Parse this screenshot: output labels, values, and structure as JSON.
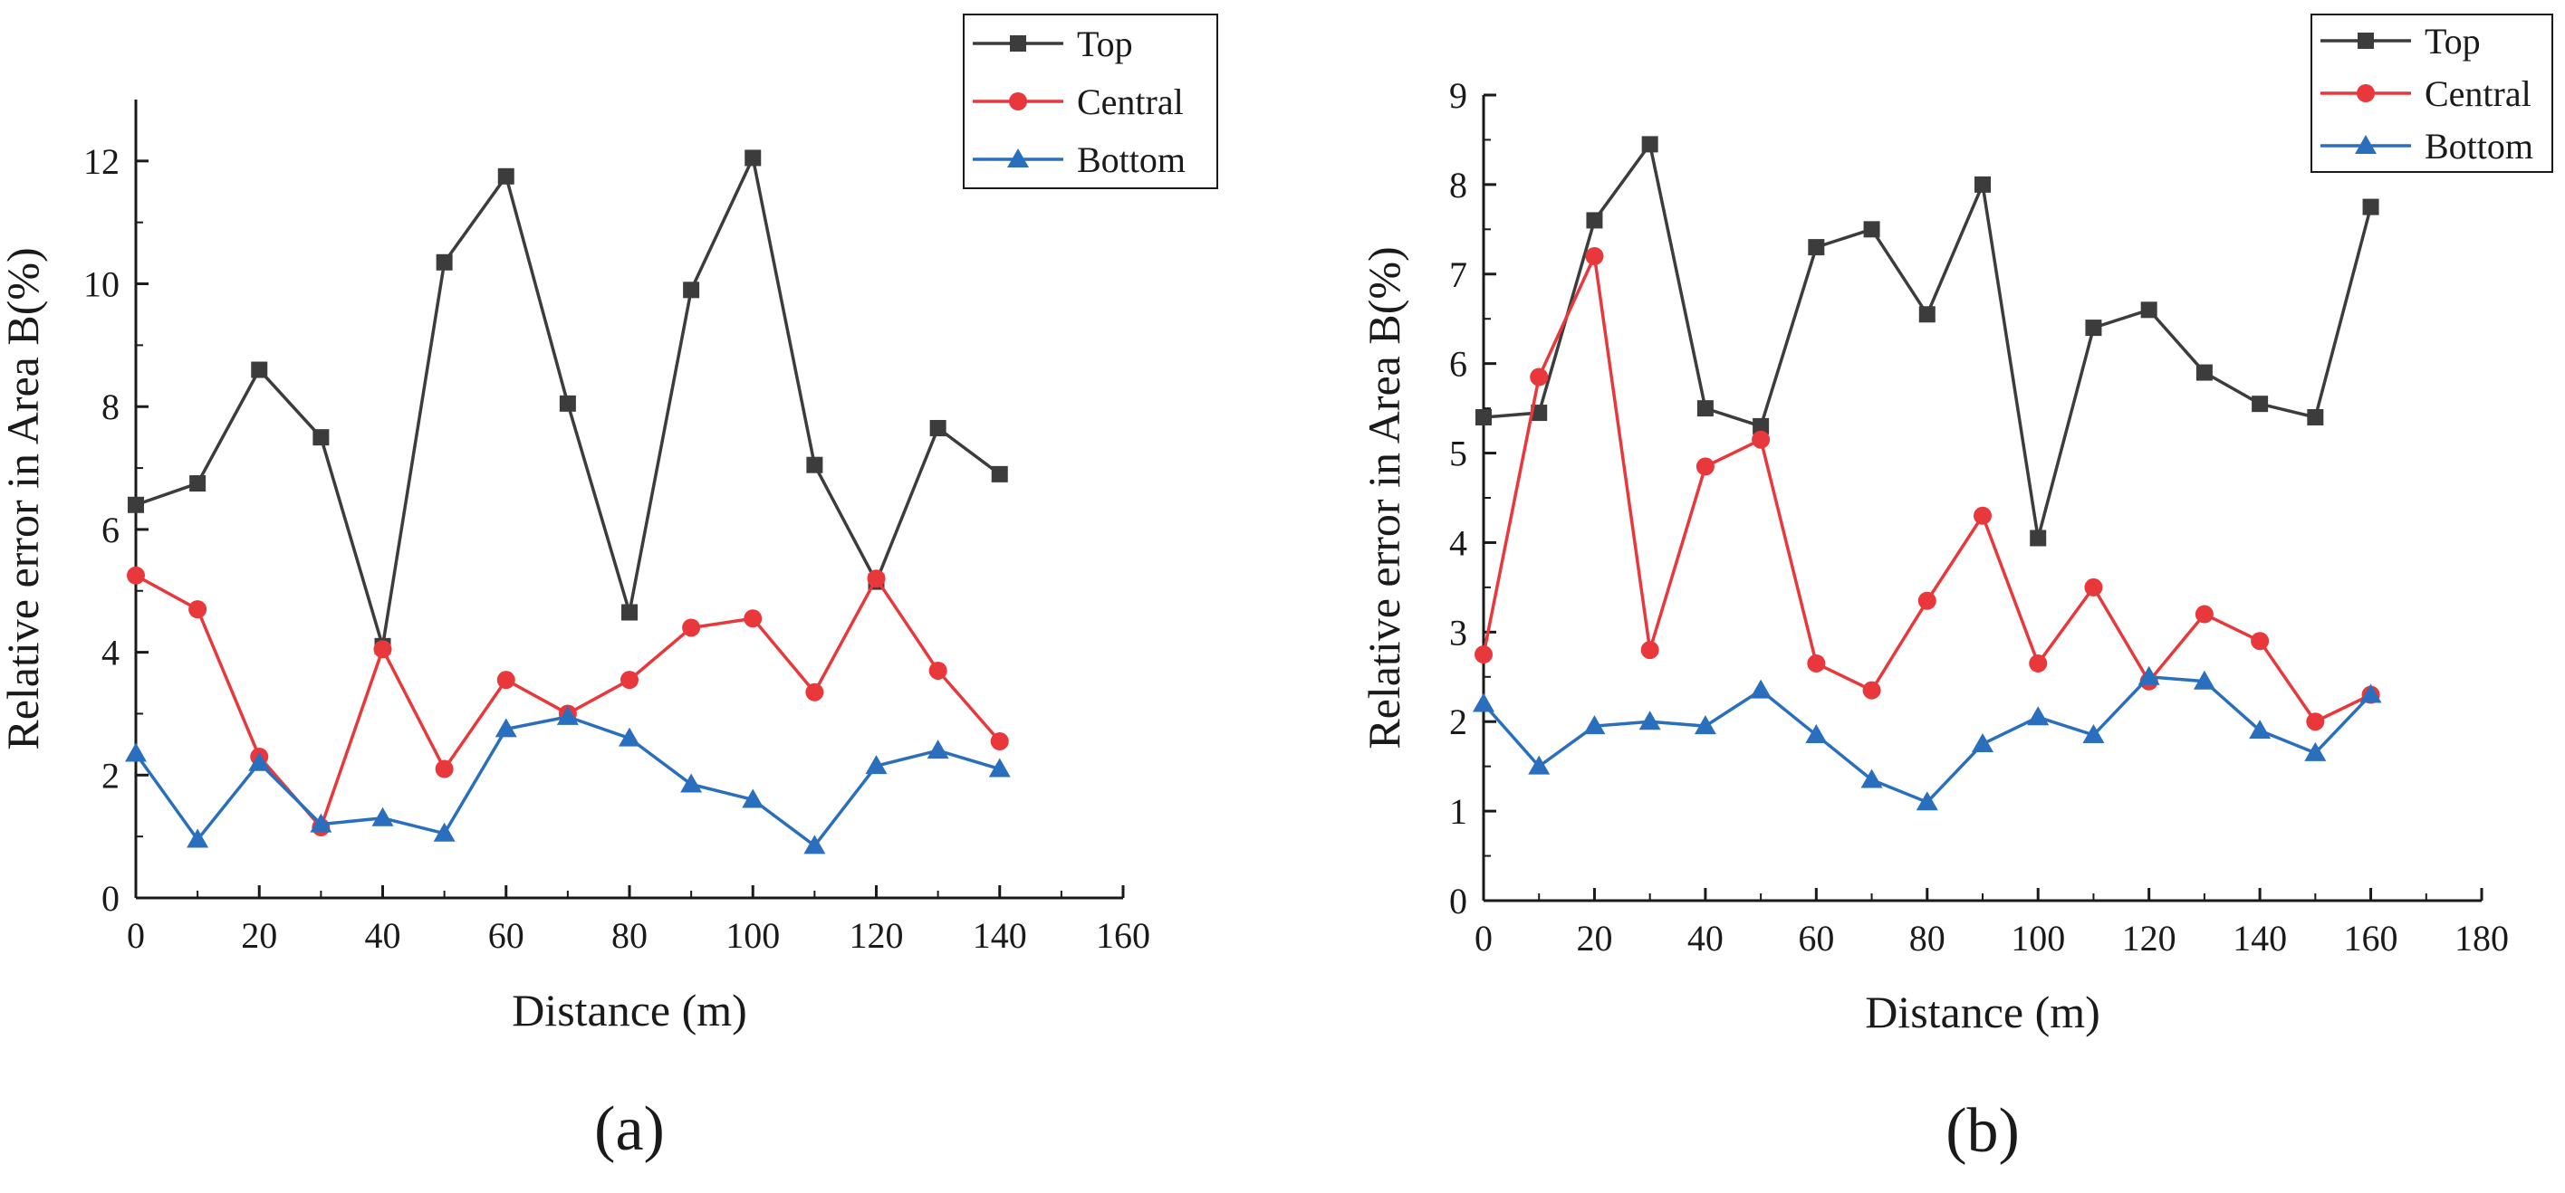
{
  "chart_data": [
    {
      "type": "line",
      "panel_label": "(a)",
      "xlabel": "Distance (m)",
      "ylabel": "Relative error in Area B(%)",
      "xlim": [
        0,
        160
      ],
      "ylim": [
        0,
        13
      ],
      "xticks": [
        0,
        20,
        40,
        60,
        80,
        100,
        120,
        140,
        160
      ],
      "yticks": [
        0,
        2,
        4,
        6,
        8,
        10,
        12
      ],
      "x": [
        0,
        10,
        20,
        30,
        40,
        50,
        60,
        70,
        80,
        90,
        100,
        110,
        120,
        130,
        140
      ],
      "legend_position": "top-right",
      "series": [
        {
          "name": "Top",
          "color": "#3c3c3c",
          "marker": "square",
          "values": [
            6.4,
            6.75,
            8.6,
            7.5,
            4.1,
            10.35,
            11.75,
            8.05,
            4.65,
            9.9,
            12.05,
            7.05,
            5.15,
            7.65,
            6.9
          ]
        },
        {
          "name": "Central",
          "color": "#e8383b",
          "marker": "circle",
          "values": [
            5.25,
            4.7,
            2.3,
            1.15,
            4.05,
            2.1,
            3.55,
            3.0,
            3.55,
            4.4,
            4.55,
            3.35,
            5.2,
            3.7,
            2.55
          ]
        },
        {
          "name": "Bottom",
          "color": "#2a6fbe",
          "marker": "triangle",
          "values": [
            2.35,
            0.95,
            2.2,
            1.2,
            1.3,
            1.05,
            2.75,
            2.95,
            2.6,
            1.85,
            1.6,
            0.85,
            2.15,
            2.4,
            2.1
          ]
        }
      ]
    },
    {
      "type": "line",
      "panel_label": "(b)",
      "xlabel": "Distance (m)",
      "ylabel": "Relative error in Area B(%)",
      "xlim": [
        0,
        180
      ],
      "ylim": [
        0,
        9
      ],
      "xticks": [
        0,
        20,
        40,
        60,
        80,
        100,
        120,
        140,
        160,
        180
      ],
      "yticks": [
        0,
        1,
        2,
        3,
        4,
        5,
        6,
        7,
        8,
        9
      ],
      "x": [
        0,
        10,
        20,
        30,
        40,
        50,
        60,
        70,
        80,
        90,
        100,
        110,
        120,
        130,
        140,
        150,
        160
      ],
      "legend_position": "top-right",
      "series": [
        {
          "name": "Top",
          "color": "#3c3c3c",
          "marker": "square",
          "values": [
            5.4,
            5.45,
            7.6,
            8.45,
            5.5,
            5.3,
            7.3,
            7.5,
            6.55,
            8.0,
            4.05,
            6.4,
            6.6,
            5.9,
            5.55,
            5.4,
            7.75
          ]
        },
        {
          "name": "Central",
          "color": "#e8383b",
          "marker": "circle",
          "values": [
            2.75,
            5.85,
            7.2,
            2.8,
            4.85,
            5.15,
            2.65,
            2.35,
            3.35,
            4.3,
            2.65,
            3.5,
            2.45,
            3.2,
            2.9,
            2.0,
            2.3
          ]
        },
        {
          "name": "Bottom",
          "color": "#2a6fbe",
          "marker": "triangle",
          "values": [
            2.2,
            1.5,
            1.95,
            2.0,
            1.95,
            2.35,
            1.85,
            1.35,
            1.1,
            1.75,
            2.05,
            1.85,
            2.5,
            2.45,
            1.9,
            1.65,
            2.3
          ]
        }
      ]
    }
  ]
}
